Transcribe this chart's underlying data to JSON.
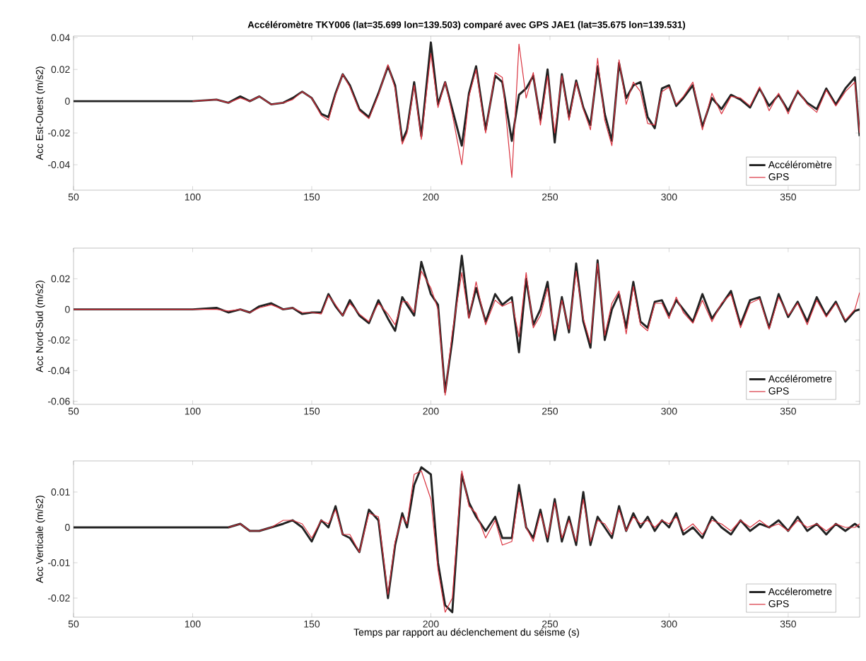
{
  "chart_data": [
    {
      "type": "line",
      "title": "Accéléromètre TKY006 (lat=35.699  lon=139.503) comparé avec GPS JAE1 (lat=35.675  lon=139.531)",
      "ylabel": "Acc Est-Ouest (m/s2)",
      "xlim": [
        50,
        380
      ],
      "ylim": [
        -0.056,
        0.041
      ],
      "xticks": [
        50,
        100,
        150,
        200,
        250,
        300,
        350
      ],
      "yticks": [
        -0.04,
        -0.02,
        0,
        0.02,
        0.04
      ],
      "grid": false,
      "legend": "bottom right",
      "x": [
        50,
        60,
        70,
        80,
        90,
        100,
        110,
        115,
        120,
        124,
        128,
        133,
        138,
        142,
        146,
        150,
        154,
        157,
        160,
        163,
        166,
        170,
        174,
        178,
        182,
        185,
        188,
        190,
        193,
        196,
        200,
        203,
        206,
        209,
        213,
        216,
        219,
        223,
        227,
        230,
        234,
        237,
        240,
        243,
        246,
        249,
        252,
        255,
        258,
        261,
        264,
        267,
        270,
        273,
        276,
        279,
        282,
        285,
        288,
        291,
        294,
        297,
        300,
        303,
        306,
        310,
        314,
        318,
        322,
        326,
        330,
        334,
        338,
        342,
        346,
        350,
        354,
        358,
        362,
        366,
        370,
        374,
        378,
        380
      ],
      "series": [
        {
          "name": "Accéléromètre",
          "color": "#222222",
          "values": [
            0,
            0,
            0,
            0,
            0,
            0,
            0.001,
            -0.001,
            0.003,
            0,
            0.003,
            -0.002,
            -0.001,
            0.002,
            0.006,
            0.002,
            -0.008,
            -0.01,
            0.005,
            0.017,
            0.01,
            -0.005,
            -0.01,
            0.005,
            0.022,
            0.01,
            -0.025,
            -0.018,
            0.012,
            -0.022,
            0.037,
            -0.002,
            0.012,
            -0.005,
            -0.028,
            0.005,
            0.022,
            -0.018,
            0.016,
            0.012,
            -0.025,
            0.004,
            0.008,
            0.016,
            -0.012,
            0.02,
            -0.026,
            0.017,
            -0.01,
            0.013,
            -0.004,
            -0.015,
            0.022,
            -0.008,
            -0.025,
            0.024,
            0.002,
            0.01,
            0.012,
            -0.01,
            -0.017,
            0.008,
            0.01,
            -0.003,
            0.002,
            0.01,
            -0.016,
            0.002,
            -0.005,
            0.004,
            0.001,
            -0.004,
            0.008,
            -0.003,
            0.004,
            -0.006,
            0.006,
            -0.001,
            -0.005,
            0.008,
            -0.002,
            0.008,
            0.015,
            -0.022
          ]
        },
        {
          "name": "GPS",
          "color": "#d9333f",
          "values": [
            null,
            null,
            null,
            null,
            null,
            0,
            0.001,
            -0.001,
            0.002,
            0,
            0.003,
            -0.002,
            -0.001,
            0.001,
            0.006,
            0.002,
            -0.009,
            -0.012,
            0.004,
            0.017,
            0.009,
            -0.006,
            -0.011,
            0.004,
            0.023,
            0.008,
            -0.027,
            -0.02,
            0.01,
            -0.024,
            0.03,
            -0.004,
            0.012,
            -0.008,
            -0.04,
            0.003,
            0.02,
            -0.02,
            0.018,
            0.015,
            -0.048,
            0.036,
            0.002,
            0.018,
            -0.015,
            0.016,
            -0.02,
            0.016,
            -0.012,
            0.012,
            -0.005,
            -0.018,
            0.027,
            -0.012,
            -0.028,
            0.026,
            -0.002,
            0.012,
            0.006,
            -0.014,
            -0.015,
            0.006,
            0.009,
            -0.002,
            0.003,
            0.012,
            -0.018,
            0.005,
            -0.008,
            0.003,
            0.002,
            -0.003,
            0.009,
            -0.006,
            0.005,
            -0.008,
            0.007,
            -0.002,
            -0.007,
            0.007,
            -0.003,
            0.006,
            0.012,
            -0.02
          ]
        }
      ]
    },
    {
      "type": "line",
      "ylabel": "Acc Nord-Sud (m/s2)",
      "xlim": [
        50,
        380
      ],
      "ylim": [
        -0.062,
        0.04
      ],
      "xticks": [
        50,
        100,
        150,
        200,
        250,
        300,
        350
      ],
      "yticks": [
        -0.06,
        -0.04,
        -0.02,
        0,
        0.02
      ],
      "grid": false,
      "legend": "bottom right",
      "x": [
        50,
        60,
        70,
        80,
        90,
        100,
        110,
        115,
        120,
        124,
        128,
        133,
        138,
        142,
        146,
        150,
        154,
        157,
        160,
        163,
        166,
        170,
        174,
        178,
        182,
        185,
        188,
        190,
        193,
        196,
        200,
        203,
        206,
        209,
        213,
        216,
        219,
        223,
        227,
        230,
        234,
        237,
        240,
        243,
        246,
        249,
        252,
        255,
        258,
        261,
        264,
        267,
        270,
        273,
        276,
        279,
        282,
        285,
        288,
        291,
        294,
        297,
        300,
        303,
        306,
        310,
        314,
        318,
        322,
        326,
        330,
        334,
        338,
        342,
        346,
        350,
        354,
        358,
        362,
        366,
        370,
        374,
        378,
        380
      ],
      "series": [
        {
          "name": "Accélérometre",
          "color": "#222222",
          "values": [
            0,
            0,
            0,
            0,
            0,
            0,
            0.001,
            -0.002,
            0,
            -0.002,
            0.002,
            0.004,
            0,
            0.001,
            -0.003,
            -0.002,
            -0.002,
            0.01,
            0.002,
            -0.004,
            0.006,
            -0.004,
            -0.009,
            0.006,
            -0.006,
            -0.014,
            0.008,
            0.003,
            -0.004,
            0.031,
            0.01,
            0.003,
            -0.054,
            -0.02,
            0.035,
            -0.005,
            0.014,
            -0.008,
            0.01,
            0.003,
            0.008,
            -0.028,
            0.02,
            -0.01,
            0,
            0.018,
            -0.02,
            0.008,
            -0.015,
            0.03,
            -0.008,
            -0.025,
            0.032,
            -0.02,
            0,
            0.01,
            -0.012,
            0.018,
            -0.008,
            -0.012,
            0.005,
            0.006,
            -0.004,
            0.006,
            0,
            -0.008,
            0.01,
            -0.006,
            0.003,
            0.012,
            -0.01,
            0.006,
            0.008,
            -0.012,
            0.01,
            -0.005,
            0.005,
            -0.008,
            0.008,
            -0.004,
            0.005,
            -0.008,
            -0.001,
            0
          ]
        },
        {
          "name": "GPS",
          "color": "#d9333f",
          "values": [
            0,
            0,
            0,
            0,
            0,
            0,
            0,
            -0.001,
            0,
            -0.002,
            0.001,
            0.003,
            0,
            0.001,
            -0.002,
            -0.002,
            -0.003,
            0.009,
            0.003,
            -0.004,
            0.004,
            -0.003,
            -0.008,
            0.004,
            -0.003,
            -0.01,
            0.005,
            0.005,
            -0.002,
            0.025,
            0.014,
            0,
            -0.056,
            -0.015,
            0.024,
            -0.006,
            0.018,
            -0.01,
            0.006,
            0.002,
            0.005,
            -0.018,
            0.024,
            -0.012,
            -0.004,
            0.014,
            -0.016,
            0.006,
            -0.013,
            0.025,
            -0.006,
            -0.022,
            0.03,
            -0.017,
            0.004,
            0.012,
            -0.016,
            0.015,
            -0.01,
            -0.014,
            0.004,
            0.004,
            -0.006,
            0.008,
            -0.002,
            -0.009,
            0.006,
            -0.008,
            0.004,
            0.01,
            -0.012,
            0.004,
            0.007,
            -0.013,
            0.008,
            -0.004,
            0.004,
            -0.01,
            0.006,
            -0.005,
            0.004,
            -0.007,
            0,
            0.011
          ]
        }
      ]
    },
    {
      "type": "line",
      "ylabel": "Acc Verticale (m/s2)",
      "xlabel": "Temps par rapport au déclenchement du séisme (s)",
      "xlim": [
        50,
        380
      ],
      "ylim": [
        -0.0254,
        0.0188
      ],
      "xticks": [
        50,
        100,
        150,
        200,
        250,
        300,
        350
      ],
      "yticks": [
        -0.02,
        -0.01,
        0,
        0.01
      ],
      "grid": false,
      "legend": "bottom right",
      "x": [
        50,
        60,
        70,
        80,
        90,
        100,
        110,
        115,
        120,
        124,
        128,
        133,
        138,
        142,
        146,
        150,
        154,
        157,
        160,
        163,
        166,
        170,
        174,
        178,
        182,
        185,
        188,
        190,
        193,
        196,
        200,
        203,
        206,
        209,
        213,
        216,
        219,
        223,
        227,
        230,
        234,
        237,
        240,
        243,
        246,
        249,
        252,
        255,
        258,
        261,
        264,
        267,
        270,
        273,
        276,
        279,
        282,
        285,
        288,
        291,
        294,
        297,
        300,
        303,
        306,
        310,
        314,
        318,
        322,
        326,
        330,
        334,
        338,
        342,
        346,
        350,
        354,
        358,
        362,
        366,
        370,
        374,
        378,
        380
      ],
      "series": [
        {
          "name": "Accélerometre",
          "color": "#222222",
          "values": [
            0,
            0,
            0,
            0,
            0,
            0,
            0,
            0,
            0.001,
            -0.001,
            -0.001,
            0,
            0.001,
            0.002,
            0,
            -0.004,
            0.002,
            0,
            0.006,
            -0.002,
            -0.003,
            -0.007,
            0.005,
            0.002,
            -0.02,
            -0.005,
            0.004,
            0,
            0.012,
            0.017,
            0.015,
            -0.01,
            -0.022,
            -0.024,
            0.015,
            0.007,
            0.003,
            -0.001,
            0.003,
            -0.003,
            -0.003,
            0.012,
            0,
            -0.003,
            0.005,
            -0.004,
            0.008,
            -0.004,
            0.003,
            -0.005,
            0.01,
            -0.005,
            0.003,
            0,
            -0.003,
            0.006,
            -0.001,
            0.004,
            0,
            0.003,
            -0.001,
            0.002,
            0,
            0.004,
            -0.002,
            0,
            -0.003,
            0.003,
            0,
            -0.002,
            0.002,
            -0.001,
            0.001,
            0,
            0.002,
            -0.001,
            0.003,
            -0.001,
            0.001,
            -0.002,
            0.001,
            -0.001,
            0.001,
            0
          ]
        },
        {
          "name": "GPS",
          "color": "#d9333f",
          "values": [
            null,
            null,
            null,
            null,
            null,
            null,
            null,
            0,
            0.001,
            -0.001,
            -0.001,
            0,
            0.002,
            0.002,
            0.001,
            -0.003,
            0.002,
            0.001,
            0.005,
            -0.002,
            -0.002,
            -0.007,
            0.004,
            0.003,
            -0.019,
            -0.004,
            0.003,
            0.001,
            0.015,
            0.016,
            0.008,
            -0.012,
            -0.024,
            -0.02,
            0.016,
            0.006,
            0.004,
            -0.003,
            0.002,
            -0.005,
            -0.004,
            0.01,
            0,
            -0.004,
            0.004,
            -0.003,
            0.007,
            -0.003,
            0.002,
            -0.004,
            0.008,
            -0.004,
            0.002,
            0.001,
            -0.002,
            0.005,
            -0.001,
            0.003,
            0.001,
            0.002,
            0,
            0.002,
            0.001,
            0.003,
            -0.001,
            0.001,
            -0.002,
            0.002,
            0.001,
            -0.001,
            0.002,
            0,
            0.002,
            0,
            0.001,
            -0.001,
            0.002,
            0,
            0.001,
            -0.001,
            0.001,
            0,
            0,
            0.001
          ]
        }
      ]
    }
  ]
}
